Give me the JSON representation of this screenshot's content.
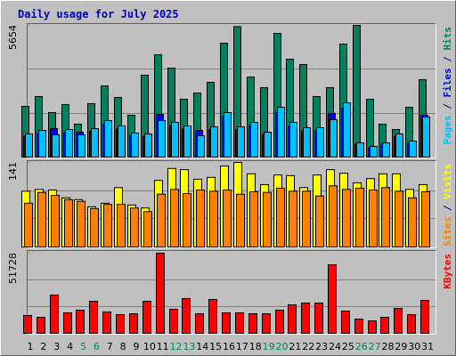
{
  "chart_data": [
    {
      "type": "bar",
      "title": "Daily usage for July 2025",
      "ylim": [
        0,
        5654
      ],
      "yticks": [
        5654
      ],
      "legend_separator": " / ",
      "series": [
        {
          "name": "Hits",
          "color": "#00805c",
          "values": [
            2177,
            2598,
            1910,
            2254,
            1414,
            2292,
            3056,
            2560,
            1796,
            3515,
            4393,
            3820,
            2483,
            2751,
            3209,
            4890,
            5600,
            3438,
            2980,
            5310,
            4202,
            3973,
            2598,
            2980,
            4852,
            5654,
            2483,
            1414,
            1184,
            2139,
            3323
          ]
        },
        {
          "name": "Files",
          "color": "#0000ff",
          "values": [
            900,
            1030,
            1222,
            1070,
            1070,
            1100,
            1410,
            1200,
            930,
            890,
            1834,
            1340,
            1200,
            1146,
            1170,
            1720,
            1170,
            1340,
            960,
            1925,
            1340,
            1130,
            1130,
            1872,
            2100,
            550,
            410,
            550,
            890,
            620,
            1795
          ]
        },
        {
          "name": "Pages",
          "color": "#00c0ff",
          "values": [
            993,
            1146,
            955,
            1184,
            955,
            1222,
            1566,
            1337,
            1031,
            993,
            1566,
            1490,
            1337,
            917,
            1299,
            1910,
            1299,
            1490,
            1070,
            2139,
            1490,
            1261,
            1261,
            1604,
            2330,
            611,
            458,
            611,
            993,
            688,
            1719
          ]
        }
      ]
    },
    {
      "type": "bar",
      "ylim": [
        0,
        141
      ],
      "yticks": [
        141
      ],
      "legend_separator": " / ",
      "series": [
        {
          "name": "Visits",
          "color": "#ffff00",
          "values": [
            93,
            96,
            95,
            82,
            79,
            67,
            73,
            99,
            70,
            65,
            111,
            131,
            129,
            113,
            116,
            135,
            141,
            122,
            104,
            120,
            119,
            99,
            120,
            129,
            123,
            107,
            114,
            122,
            122,
            96,
            104
          ]
        },
        {
          "name": "Sites",
          "color": "#ff8000",
          "values": [
            73,
            91,
            86,
            79,
            76,
            64,
            71,
            71,
            65,
            59,
            88,
            96,
            89,
            95,
            93,
            95,
            88,
            92,
            91,
            98,
            93,
            93,
            85,
            102,
            96,
            98,
            95,
            99,
            93,
            82,
            92
          ]
        }
      ]
    },
    {
      "type": "bar",
      "ylim": [
        0,
        51728
      ],
      "yticks": [
        51728
      ],
      "categories": [
        "1",
        "2",
        "3",
        "4",
        "5",
        "6",
        "7",
        "8",
        "9",
        "10",
        "11",
        "12",
        "13",
        "14",
        "15",
        "16",
        "17",
        "18",
        "19",
        "20",
        "21",
        "22",
        "23",
        "24",
        "25",
        "26",
        "27",
        "28",
        "29",
        "30",
        "31"
      ],
      "weekend_indices": [
        4,
        5,
        11,
        12,
        18,
        19,
        25,
        26
      ],
      "weekend_color": "#00805c",
      "series": [
        {
          "name": "KBytes",
          "color": "#ff0000",
          "values": [
            11500,
            10350,
            24725,
            13225,
            14950,
            20700,
            13800,
            12075,
            12650,
            20700,
            51728,
            15525,
            22425,
            12650,
            21850,
            13225,
            13225,
            12650,
            12650,
            14950,
            18400,
            19550,
            19550,
            44275,
            14375,
            9200,
            8050,
            10350,
            16100,
            12075,
            21275
          ]
        }
      ]
    }
  ]
}
